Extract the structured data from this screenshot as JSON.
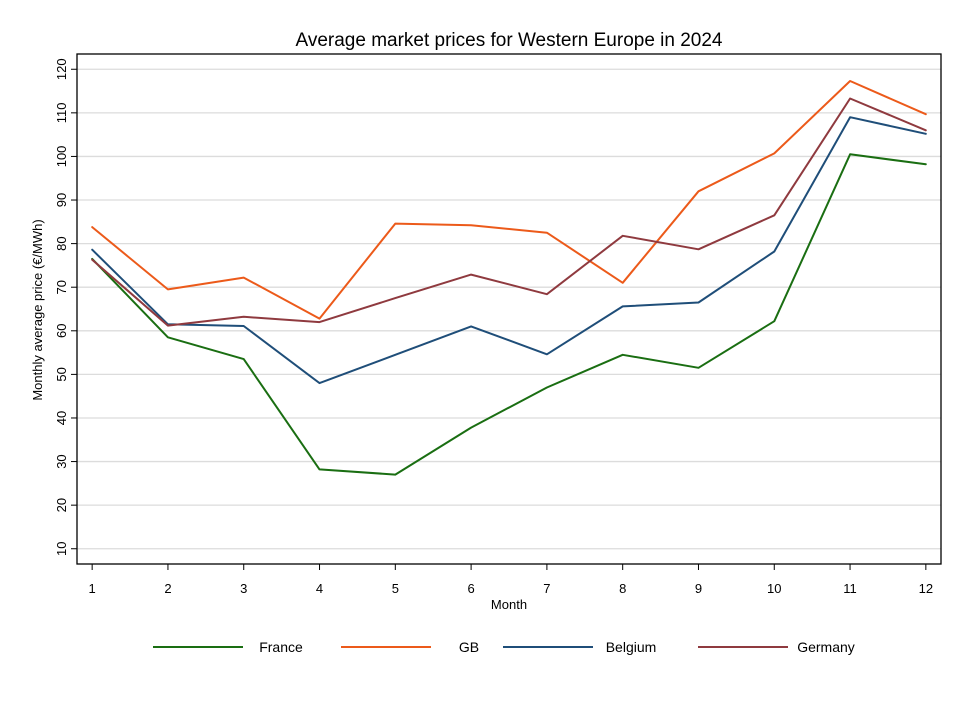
{
  "chart_data": {
    "type": "line",
    "title": "Average market prices for Western Europe in 2024",
    "xlabel": "Month",
    "ylabel": "Monthly average price (€/MWh)",
    "x": [
      1,
      2,
      3,
      4,
      5,
      6,
      7,
      8,
      9,
      10,
      11,
      12
    ],
    "xticks": [
      "1",
      "2",
      "3",
      "4",
      "5",
      "6",
      "7",
      "8",
      "9",
      "10",
      "11",
      "12"
    ],
    "yticks": [
      10,
      20,
      30,
      40,
      50,
      60,
      70,
      80,
      90,
      100,
      110,
      120
    ],
    "ylim": [
      6.5,
      123.5
    ],
    "xlim": [
      0.8,
      12.2
    ],
    "grid": true,
    "legend_position": "bottom",
    "series": [
      {
        "name": "France",
        "color": "#1a6e12",
        "values": [
          76.5,
          58.5,
          53.5,
          28.2,
          27.0,
          37.8,
          47.0,
          54.5,
          51.5,
          62.2,
          100.5,
          98.2
        ]
      },
      {
        "name": "GB",
        "color": "#ec5a1a",
        "values": [
          83.8,
          69.5,
          72.2,
          62.8,
          84.6,
          84.2,
          82.5,
          71.0,
          92.0,
          100.7,
          117.3,
          109.7
        ]
      },
      {
        "name": "Belgium",
        "color": "#1f4e79",
        "values": [
          78.6,
          61.5,
          61.1,
          48.0,
          54.5,
          61.0,
          54.6,
          65.6,
          66.5,
          78.2,
          109.0,
          105.2
        ]
      },
      {
        "name": "Germany",
        "color": "#8f3a3f",
        "values": [
          76.3,
          61.2,
          63.2,
          62.0,
          67.5,
          72.9,
          68.4,
          81.8,
          78.7,
          86.5,
          113.3,
          106.0
        ]
      }
    ]
  }
}
